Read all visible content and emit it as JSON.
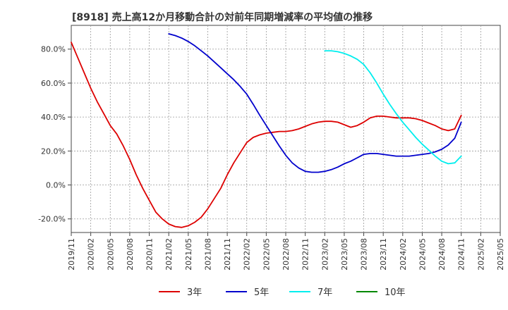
{
  "chart_data": {
    "type": "line",
    "title": "[8918]  売上高12か月移動合計の対前年同期増減率の平均値の推移",
    "xlabel": "",
    "ylabel": "",
    "ylim": [
      -28,
      94
    ],
    "y_ticks": [
      80,
      60,
      40,
      20,
      0,
      -20
    ],
    "y_tick_labels": [
      "80.0%",
      "60.0%",
      "40.0%",
      "20.0%",
      "0.0%",
      "-20.0%"
    ],
    "x_ticks": [
      "2019/11",
      "2020/02",
      "2020/05",
      "2020/08",
      "2020/11",
      "2021/02",
      "2021/05",
      "2021/08",
      "2021/11",
      "2022/02",
      "2022/05",
      "2022/08",
      "2022/11",
      "2023/02",
      "2023/05",
      "2023/08",
      "2023/11",
      "2024/02",
      "2024/05",
      "2024/08",
      "2024/11",
      "2025/02",
      "2025/05"
    ],
    "grid": true,
    "legend_position": "bottom",
    "series": [
      {
        "name": "3年",
        "color": "#dd0000",
        "points": [
          [
            "2019/11",
            84
          ],
          [
            "2019/12",
            75
          ],
          [
            "2020/01",
            66
          ],
          [
            "2020/02",
            57
          ],
          [
            "2020/03",
            49
          ],
          [
            "2020/04",
            42
          ],
          [
            "2020/05",
            35
          ],
          [
            "2020/06",
            30
          ],
          [
            "2020/07",
            23
          ],
          [
            "2020/08",
            15
          ],
          [
            "2020/09",
            6
          ],
          [
            "2020/10",
            -2
          ],
          [
            "2020/11",
            -9
          ],
          [
            "2020/12",
            -16
          ],
          [
            "2021/01",
            -20
          ],
          [
            "2021/02",
            -23
          ],
          [
            "2021/03",
            -24.5
          ],
          [
            "2021/04",
            -25
          ],
          [
            "2021/05",
            -24
          ],
          [
            "2021/06",
            -22
          ],
          [
            "2021/07",
            -19
          ],
          [
            "2021/08",
            -14
          ],
          [
            "2021/09",
            -8
          ],
          [
            "2021/10",
            -2
          ],
          [
            "2021/11",
            6
          ],
          [
            "2021/12",
            13
          ],
          [
            "2022/01",
            19
          ],
          [
            "2022/02",
            25
          ],
          [
            "2022/03",
            28
          ],
          [
            "2022/04",
            29.5
          ],
          [
            "2022/05",
            30.5
          ],
          [
            "2022/06",
            31
          ],
          [
            "2022/07",
            31.5
          ],
          [
            "2022/08",
            31.5
          ],
          [
            "2022/09",
            32
          ],
          [
            "2022/10",
            33
          ],
          [
            "2022/11",
            34.5
          ],
          [
            "2022/12",
            36
          ],
          [
            "2023/01",
            37
          ],
          [
            "2023/02",
            37.5
          ],
          [
            "2023/03",
            37.5
          ],
          [
            "2023/04",
            37
          ],
          [
            "2023/05",
            35.5
          ],
          [
            "2023/06",
            34
          ],
          [
            "2023/07",
            35
          ],
          [
            "2023/08",
            37
          ],
          [
            "2023/09",
            39.5
          ],
          [
            "2023/10",
            40.5
          ],
          [
            "2023/11",
            40.5
          ],
          [
            "2023/12",
            40
          ],
          [
            "2024/01",
            39.5
          ],
          [
            "2024/02",
            39.5
          ],
          [
            "2024/03",
            39.5
          ],
          [
            "2024/04",
            39
          ],
          [
            "2024/05",
            38
          ],
          [
            "2024/06",
            36.5
          ],
          [
            "2024/07",
            35
          ],
          [
            "2024/08",
            33
          ],
          [
            "2024/09",
            32
          ],
          [
            "2024/10",
            33
          ],
          [
            "2024/11",
            41
          ]
        ]
      },
      {
        "name": "5年",
        "color": "#0000cc",
        "points": [
          [
            "2021/02",
            89
          ],
          [
            "2021/03",
            88
          ],
          [
            "2021/04",
            86.5
          ],
          [
            "2021/05",
            84.5
          ],
          [
            "2021/06",
            82
          ],
          [
            "2021/07",
            79
          ],
          [
            "2021/08",
            76
          ],
          [
            "2021/09",
            72.5
          ],
          [
            "2021/10",
            69
          ],
          [
            "2021/11",
            65.5
          ],
          [
            "2021/12",
            62
          ],
          [
            "2022/01",
            58
          ],
          [
            "2022/02",
            53.5
          ],
          [
            "2022/03",
            47.5
          ],
          [
            "2022/04",
            41
          ],
          [
            "2022/05",
            35
          ],
          [
            "2022/06",
            29
          ],
          [
            "2022/07",
            23
          ],
          [
            "2022/08",
            17.5
          ],
          [
            "2022/09",
            13
          ],
          [
            "2022/10",
            10
          ],
          [
            "2022/11",
            8
          ],
          [
            "2022/12",
            7.5
          ],
          [
            "2023/01",
            7.5
          ],
          [
            "2023/02",
            8
          ],
          [
            "2023/03",
            9
          ],
          [
            "2023/04",
            10.5
          ],
          [
            "2023/05",
            12.5
          ],
          [
            "2023/06",
            14
          ],
          [
            "2023/07",
            16
          ],
          [
            "2023/08",
            18
          ],
          [
            "2023/09",
            18.5
          ],
          [
            "2023/10",
            18.5
          ],
          [
            "2023/11",
            18
          ],
          [
            "2023/12",
            17.5
          ],
          [
            "2024/01",
            17
          ],
          [
            "2024/02",
            17
          ],
          [
            "2024/03",
            17
          ],
          [
            "2024/04",
            17.5
          ],
          [
            "2024/05",
            18
          ],
          [
            "2024/06",
            18.5
          ],
          [
            "2024/07",
            19.5
          ],
          [
            "2024/08",
            21
          ],
          [
            "2024/09",
            23.5
          ],
          [
            "2024/10",
            27.5
          ],
          [
            "2024/11",
            37
          ]
        ]
      },
      {
        "name": "7年",
        "color": "#00eeee",
        "points": [
          [
            "2023/02",
            79
          ],
          [
            "2023/03",
            79
          ],
          [
            "2023/04",
            78.5
          ],
          [
            "2023/05",
            77.5
          ],
          [
            "2023/06",
            76
          ],
          [
            "2023/07",
            74
          ],
          [
            "2023/08",
            71
          ],
          [
            "2023/09",
            66
          ],
          [
            "2023/10",
            60
          ],
          [
            "2023/11",
            53.5
          ],
          [
            "2023/12",
            47.5
          ],
          [
            "2024/01",
            42
          ],
          [
            "2024/02",
            37
          ],
          [
            "2024/03",
            32.5
          ],
          [
            "2024/04",
            28
          ],
          [
            "2024/05",
            24
          ],
          [
            "2024/06",
            20.5
          ],
          [
            "2024/07",
            17
          ],
          [
            "2024/08",
            14
          ],
          [
            "2024/09",
            12.5
          ],
          [
            "2024/10",
            13
          ],
          [
            "2024/11",
            17
          ]
        ]
      },
      {
        "name": "10年",
        "color": "#008800",
        "points": []
      }
    ]
  }
}
